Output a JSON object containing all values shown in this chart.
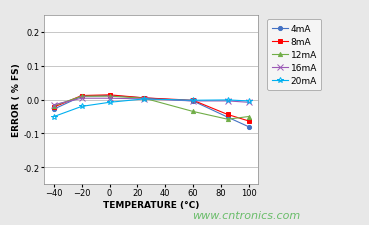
{
  "title": "",
  "xlabel": "TEMPERATURE (°C)",
  "ylabel": "ERROR ( % FS)",
  "watermark": "www.cntronics.com",
  "xlim": [
    -47,
    107
  ],
  "ylim": [
    -0.25,
    0.25
  ],
  "xticks": [
    -40,
    -20,
    0,
    20,
    40,
    60,
    80,
    100
  ],
  "yticks": [
    -0.2,
    -0.1,
    0.0,
    0.1,
    0.2
  ],
  "series": [
    {
      "label": "4mA",
      "color": "#4472C4",
      "marker": "o",
      "markersize": 3,
      "x": [
        -40,
        -20,
        0,
        25,
        60,
        85,
        100
      ],
      "y": [
        -0.028,
        0.01,
        0.012,
        0.005,
        -0.004,
        -0.052,
        -0.08
      ]
    },
    {
      "label": "8mA",
      "color": "#FF0000",
      "marker": "s",
      "markersize": 3,
      "x": [
        -40,
        -20,
        0,
        25,
        60,
        85,
        100
      ],
      "y": [
        -0.022,
        0.012,
        0.014,
        0.005,
        -0.002,
        -0.044,
        -0.063
      ]
    },
    {
      "label": "12mA",
      "color": "#70AD47",
      "marker": "^",
      "markersize": 3,
      "x": [
        -40,
        -20,
        0,
        25,
        60,
        85,
        100
      ],
      "y": [
        -0.018,
        0.01,
        0.01,
        0.004,
        -0.035,
        -0.058,
        -0.05
      ]
    },
    {
      "label": "16mA",
      "color": "#9B59B6",
      "marker": "x",
      "markersize": 4,
      "x": [
        -40,
        -20,
        0,
        25,
        60,
        85,
        100
      ],
      "y": [
        -0.015,
        0.004,
        0.004,
        0.002,
        -0.004,
        -0.004,
        -0.008
      ]
    },
    {
      "label": "20mA",
      "color": "#00B0F0",
      "marker": "*",
      "markersize": 4,
      "x": [
        -40,
        -20,
        0,
        25,
        60,
        85,
        100
      ],
      "y": [
        -0.05,
        -0.02,
        -0.008,
        0.002,
        -0.002,
        -0.001,
        -0.004
      ]
    }
  ],
  "background_color": "#e8e8e8",
  "plot_bg_color": "#ffffff",
  "grid_color": "#b0b0b0",
  "legend_fontsize": 6.5,
  "axis_label_fontsize": 6.5,
  "tick_fontsize": 6,
  "watermark_color": "#5cb85c",
  "watermark_fontsize": 8
}
